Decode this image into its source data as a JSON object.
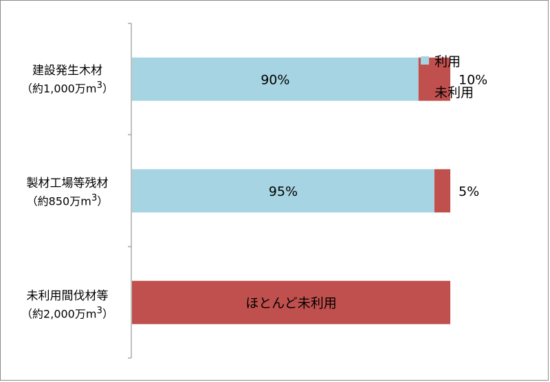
{
  "chart_data": {
    "type": "bar",
    "orientation": "horizontal",
    "stacked": true,
    "xlim": [
      0,
      100
    ],
    "grid": false,
    "legend_position": "right",
    "colors": {
      "used": "#a6d4e2",
      "unused": "#c0504d"
    },
    "categories": [
      {
        "name": "建設発生木材",
        "sub_prefix": "（約1,000万m",
        "sub_sup": "3",
        "sub_suffix": "）"
      },
      {
        "name": "製材工場等残材",
        "sub_prefix": "（約850万m",
        "sub_sup": "3",
        "sub_suffix": "）"
      },
      {
        "name": "未利用間伐材等",
        "sub_prefix": "（約2,000万m",
        "sub_sup": "3",
        "sub_suffix": "）"
      }
    ],
    "series": [
      {
        "name": "利用",
        "values": [
          90,
          95,
          0
        ],
        "labels": [
          "90%",
          "95%",
          ""
        ]
      },
      {
        "name": "未利用",
        "values": [
          10,
          5,
          100
        ],
        "labels": [
          "10%",
          "5%",
          "ほとんど未利用"
        ]
      }
    ],
    "note": [
      "",
      "",
      "ほとんど未利用"
    ]
  }
}
